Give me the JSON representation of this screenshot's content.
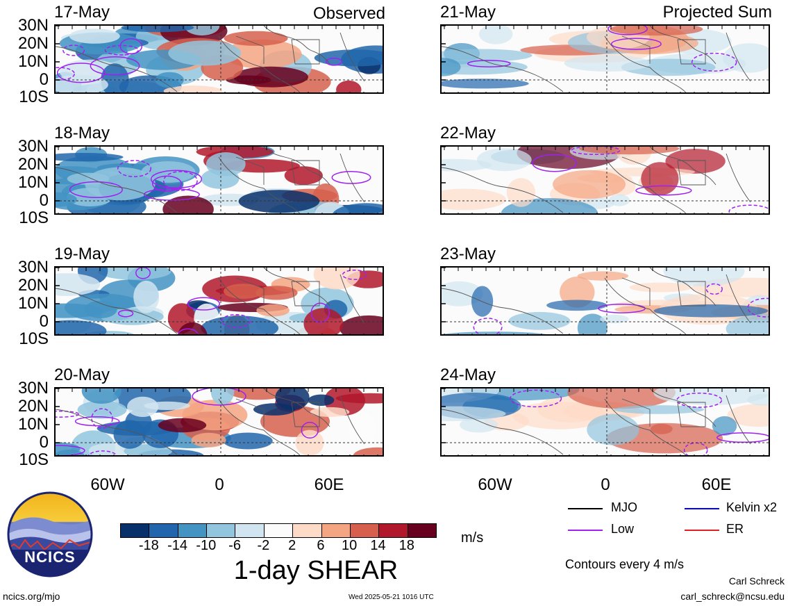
{
  "header": {
    "left_corner": "Observed",
    "right_corner": "Projected Sum"
  },
  "panels": {
    "left": [
      "17-May",
      "18-May",
      "19-May",
      "20-May"
    ],
    "right": [
      "21-May",
      "22-May",
      "23-May",
      "24-May"
    ]
  },
  "axes": {
    "lat_labels": [
      "30N",
      "20N",
      "10N",
      "0",
      "10S"
    ],
    "lon_labels": [
      "60W",
      "0",
      "60E"
    ]
  },
  "colorbar": {
    "ticks": [
      "-18",
      "-14",
      "-10",
      "-6",
      "-2",
      "2",
      "6",
      "10",
      "14",
      "18"
    ],
    "colors": [
      "#08306b",
      "#2166ac",
      "#4393c3",
      "#92c5de",
      "#d1e5f0",
      "#fbfbfb",
      "#fddbc7",
      "#f4a582",
      "#d6604d",
      "#b2182b",
      "#67001f"
    ],
    "units": "m/s",
    "title": "1-day SHEAR"
  },
  "legend": {
    "items": [
      {
        "label": "MJO",
        "color": "#000000"
      },
      {
        "label": "Kelvin x2",
        "color": "#0000ff"
      },
      {
        "label": "Low",
        "color": "#a020f0"
      },
      {
        "label": "ER",
        "color": "#e02020"
      }
    ],
    "note": "Contours every 4 m/s"
  },
  "footer": {
    "logo_text": "NCICS",
    "site": "ncics.org/mjo",
    "timestamp": "Wed 2025-05-21 1016 UTC",
    "author": "Carl Schreck",
    "email": "carl_schreck@ncsu.edu"
  }
}
